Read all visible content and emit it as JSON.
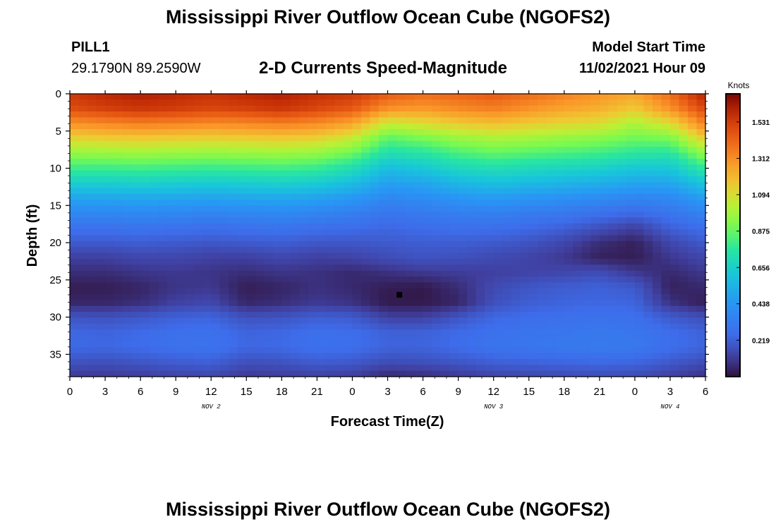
{
  "header": {
    "title": "Mississippi River Outflow Ocean Cube (NGOFS2)",
    "station": "PILL1",
    "coordinates": "29.1790N  89.2590W",
    "subtitle": "2-D Currents Speed-Magnitude",
    "model_start_label": "Model Start Time",
    "model_start_value": "11/02/2021 Hour 09"
  },
  "footer": {
    "title": "Mississippi River Outflow Ocean Cube (NGOFS2)"
  },
  "chart_data": {
    "type": "heatmap",
    "title": "2-D Currents Speed-Magnitude",
    "xlabel": "Forecast Time(Z)",
    "ylabel": "Depth (ft)",
    "x_range_hours": [
      0,
      54
    ],
    "y_range_ft": [
      0,
      38
    ],
    "y_inverted": true,
    "x_ticks": [
      {
        "hour": 0,
        "label": "0"
      },
      {
        "hour": 3,
        "label": "3"
      },
      {
        "hour": 6,
        "label": "6"
      },
      {
        "hour": 9,
        "label": "9"
      },
      {
        "hour": 12,
        "label": "12"
      },
      {
        "hour": 15,
        "label": "15"
      },
      {
        "hour": 18,
        "label": "18"
      },
      {
        "hour": 21,
        "label": "21"
      },
      {
        "hour": 24,
        "label": "0"
      },
      {
        "hour": 27,
        "label": "3"
      },
      {
        "hour": 30,
        "label": "6"
      },
      {
        "hour": 33,
        "label": "9"
      },
      {
        "hour": 36,
        "label": "12"
      },
      {
        "hour": 39,
        "label": "15"
      },
      {
        "hour": 42,
        "label": "18"
      },
      {
        "hour": 45,
        "label": "21"
      },
      {
        "hour": 48,
        "label": "0"
      },
      {
        "hour": 51,
        "label": "3"
      },
      {
        "hour": 54,
        "label": "6"
      }
    ],
    "date_labels": [
      {
        "hour": 12,
        "label": "NOV 2"
      },
      {
        "hour": 36,
        "label": "NOV 3"
      },
      {
        "hour": 51,
        "label": "NOV 4"
      }
    ],
    "y_ticks": [
      0,
      5,
      10,
      15,
      20,
      25,
      30,
      35
    ],
    "colorbar": {
      "unit": "Knots",
      "min": 0.0,
      "max": 1.7,
      "ticks": [
        0.219,
        0.438,
        0.656,
        0.875,
        1.094,
        1.312,
        1.531
      ]
    },
    "marker": {
      "hour": 28,
      "depth_ft": 27
    },
    "time_columns_hours": [
      0,
      3,
      6,
      9,
      12,
      15,
      18,
      21,
      24,
      27,
      30,
      33,
      36,
      39,
      42,
      45,
      48,
      51,
      54
    ],
    "depth_rows_ft": [
      0,
      2,
      4,
      6,
      8,
      10,
      12,
      14,
      16,
      18,
      20,
      22,
      24,
      26,
      28,
      30,
      32,
      34,
      36,
      38
    ],
    "speed_knots": [
      [
        1.55,
        1.6,
        1.62,
        1.6,
        1.57,
        1.6,
        1.62,
        1.58,
        1.55,
        1.45,
        1.4,
        1.42,
        1.45,
        1.4,
        1.35,
        1.3,
        1.25,
        1.4,
        1.62
      ],
      [
        1.48,
        1.52,
        1.55,
        1.53,
        1.5,
        1.52,
        1.55,
        1.5,
        1.45,
        1.3,
        1.28,
        1.32,
        1.35,
        1.3,
        1.25,
        1.22,
        1.15,
        1.3,
        1.5
      ],
      [
        1.3,
        1.33,
        1.35,
        1.34,
        1.32,
        1.33,
        1.35,
        1.32,
        1.25,
        1.05,
        1.1,
        1.15,
        1.18,
        1.15,
        1.12,
        1.1,
        1.0,
        1.1,
        1.35
      ],
      [
        1.12,
        1.14,
        1.15,
        1.14,
        1.13,
        1.14,
        1.15,
        1.13,
        1.05,
        0.85,
        0.9,
        0.96,
        1.0,
        0.98,
        0.95,
        0.93,
        0.88,
        0.9,
        1.15
      ],
      [
        0.95,
        0.96,
        0.97,
        0.96,
        0.95,
        0.96,
        0.97,
        0.95,
        0.88,
        0.72,
        0.75,
        0.82,
        0.86,
        0.84,
        0.82,
        0.8,
        0.76,
        0.75,
        0.95
      ],
      [
        0.8,
        0.8,
        0.81,
        0.8,
        0.79,
        0.8,
        0.81,
        0.79,
        0.72,
        0.58,
        0.62,
        0.69,
        0.72,
        0.7,
        0.68,
        0.66,
        0.62,
        0.62,
        0.78
      ],
      [
        0.65,
        0.65,
        0.66,
        0.65,
        0.64,
        0.65,
        0.66,
        0.64,
        0.58,
        0.48,
        0.5,
        0.56,
        0.59,
        0.57,
        0.55,
        0.53,
        0.5,
        0.5,
        0.62
      ],
      [
        0.5,
        0.5,
        0.51,
        0.5,
        0.49,
        0.5,
        0.51,
        0.49,
        0.45,
        0.38,
        0.4,
        0.44,
        0.46,
        0.44,
        0.42,
        0.4,
        0.37,
        0.38,
        0.48
      ],
      [
        0.38,
        0.38,
        0.39,
        0.38,
        0.37,
        0.38,
        0.39,
        0.37,
        0.34,
        0.3,
        0.32,
        0.34,
        0.35,
        0.33,
        0.31,
        0.28,
        0.25,
        0.3,
        0.36
      ],
      [
        0.28,
        0.28,
        0.29,
        0.28,
        0.27,
        0.28,
        0.29,
        0.27,
        0.26,
        0.24,
        0.26,
        0.27,
        0.27,
        0.25,
        0.22,
        0.17,
        0.12,
        0.22,
        0.27
      ],
      [
        0.2,
        0.2,
        0.21,
        0.2,
        0.19,
        0.2,
        0.21,
        0.19,
        0.19,
        0.2,
        0.21,
        0.21,
        0.2,
        0.18,
        0.14,
        0.07,
        0.04,
        0.14,
        0.2
      ],
      [
        0.12,
        0.12,
        0.14,
        0.14,
        0.12,
        0.12,
        0.14,
        0.12,
        0.13,
        0.16,
        0.18,
        0.17,
        0.15,
        0.13,
        0.1,
        0.04,
        0.03,
        0.1,
        0.14
      ],
      [
        0.07,
        0.07,
        0.09,
        0.1,
        0.09,
        0.07,
        0.09,
        0.08,
        0.06,
        0.08,
        0.1,
        0.11,
        0.12,
        0.13,
        0.14,
        0.16,
        0.1,
        0.06,
        0.1
      ],
      [
        0.03,
        0.03,
        0.05,
        0.09,
        0.1,
        0.03,
        0.05,
        0.08,
        0.06,
        0.03,
        0.02,
        0.07,
        0.15,
        0.19,
        0.21,
        0.22,
        0.2,
        0.04,
        0.06
      ],
      [
        0.05,
        0.05,
        0.07,
        0.12,
        0.14,
        0.05,
        0.07,
        0.1,
        0.08,
        0.02,
        0.02,
        0.05,
        0.17,
        0.21,
        0.23,
        0.24,
        0.23,
        0.08,
        0.03
      ],
      [
        0.18,
        0.17,
        0.19,
        0.22,
        0.23,
        0.17,
        0.18,
        0.21,
        0.2,
        0.12,
        0.12,
        0.18,
        0.24,
        0.26,
        0.27,
        0.28,
        0.27,
        0.2,
        0.16
      ],
      [
        0.24,
        0.23,
        0.25,
        0.27,
        0.28,
        0.23,
        0.24,
        0.27,
        0.26,
        0.22,
        0.22,
        0.25,
        0.28,
        0.29,
        0.3,
        0.31,
        0.3,
        0.26,
        0.22
      ],
      [
        0.25,
        0.24,
        0.26,
        0.28,
        0.29,
        0.24,
        0.25,
        0.28,
        0.27,
        0.23,
        0.23,
        0.26,
        0.29,
        0.3,
        0.31,
        0.32,
        0.31,
        0.27,
        0.23
      ],
      [
        0.18,
        0.17,
        0.19,
        0.21,
        0.22,
        0.17,
        0.18,
        0.21,
        0.2,
        0.16,
        0.17,
        0.19,
        0.22,
        0.23,
        0.24,
        0.25,
        0.24,
        0.2,
        0.16
      ],
      [
        0.1,
        0.1,
        0.11,
        0.13,
        0.14,
        0.1,
        0.11,
        0.12,
        0.11,
        0.06,
        0.07,
        0.1,
        0.13,
        0.14,
        0.15,
        0.16,
        0.15,
        0.12,
        0.08
      ]
    ]
  }
}
